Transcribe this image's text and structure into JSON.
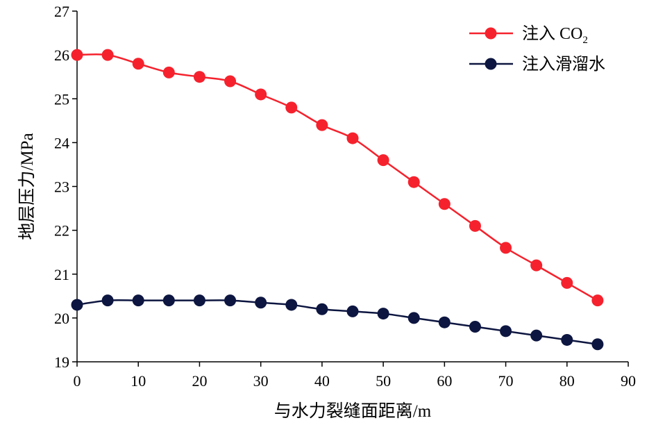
{
  "chart_data": {
    "type": "line",
    "title": "",
    "xlabel": "与水力裂缝面距离/m",
    "ylabel": "地层压力/MPa",
    "xlim": [
      0,
      90
    ],
    "ylim": [
      19,
      27
    ],
    "xticks": [
      0,
      10,
      20,
      30,
      40,
      50,
      60,
      70,
      80,
      90
    ],
    "yticks": [
      19,
      20,
      21,
      22,
      23,
      24,
      25,
      26,
      27
    ],
    "grid": false,
    "legend_position": "top-right",
    "x": [
      0,
      5,
      10,
      15,
      20,
      25,
      30,
      35,
      40,
      45,
      50,
      55,
      60,
      65,
      70,
      75,
      80,
      85
    ],
    "series": [
      {
        "name": "注入 CO2",
        "legend_main": "注入 CO",
        "legend_sub": "2",
        "color": "#f5222d",
        "values": [
          26.0,
          26.0,
          25.8,
          25.6,
          25.5,
          25.4,
          25.1,
          24.8,
          24.4,
          24.1,
          23.6,
          23.1,
          22.6,
          22.1,
          21.6,
          21.2,
          20.8,
          20.4
        ]
      },
      {
        "name": "注入滑溜水",
        "legend_main": "注入滑溜水",
        "legend_sub": "",
        "color": "#0d1640",
        "values": [
          20.3,
          20.4,
          20.4,
          20.4,
          20.4,
          20.4,
          20.35,
          20.3,
          20.2,
          20.15,
          20.1,
          20.0,
          19.9,
          19.8,
          19.7,
          19.6,
          19.5,
          19.4
        ]
      }
    ]
  }
}
